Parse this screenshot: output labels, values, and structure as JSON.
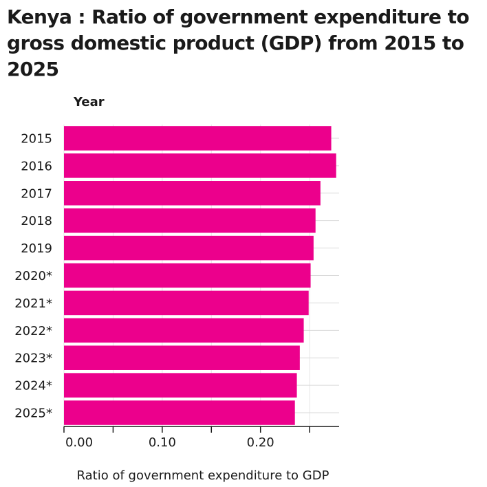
{
  "chart_data": {
    "type": "bar",
    "orientation": "horizontal",
    "title": "Kenya : Ratio of government expenditure to gross domestic product (GDP) from 2015 to 2025",
    "xlabel": "Ratio of government expenditure to GDP",
    "ylabel": "Year",
    "categories": [
      "2015",
      "2016",
      "2017",
      "2018",
      "2019",
      "2020*",
      "2021*",
      "2022*",
      "2023*",
      "2024*",
      "2025*"
    ],
    "values": [
      0.272,
      0.277,
      0.261,
      0.256,
      0.254,
      0.251,
      0.249,
      0.244,
      0.24,
      0.237,
      0.235
    ],
    "xlim": [
      0,
      0.28
    ],
    "xticks": [
      0.0,
      0.1,
      0.2
    ],
    "xtick_labels": [
      "0.00",
      "0.10",
      "0.20"
    ],
    "bar_color": "#ec008c",
    "grid": "vertical gridlines only",
    "legend": "none"
  }
}
